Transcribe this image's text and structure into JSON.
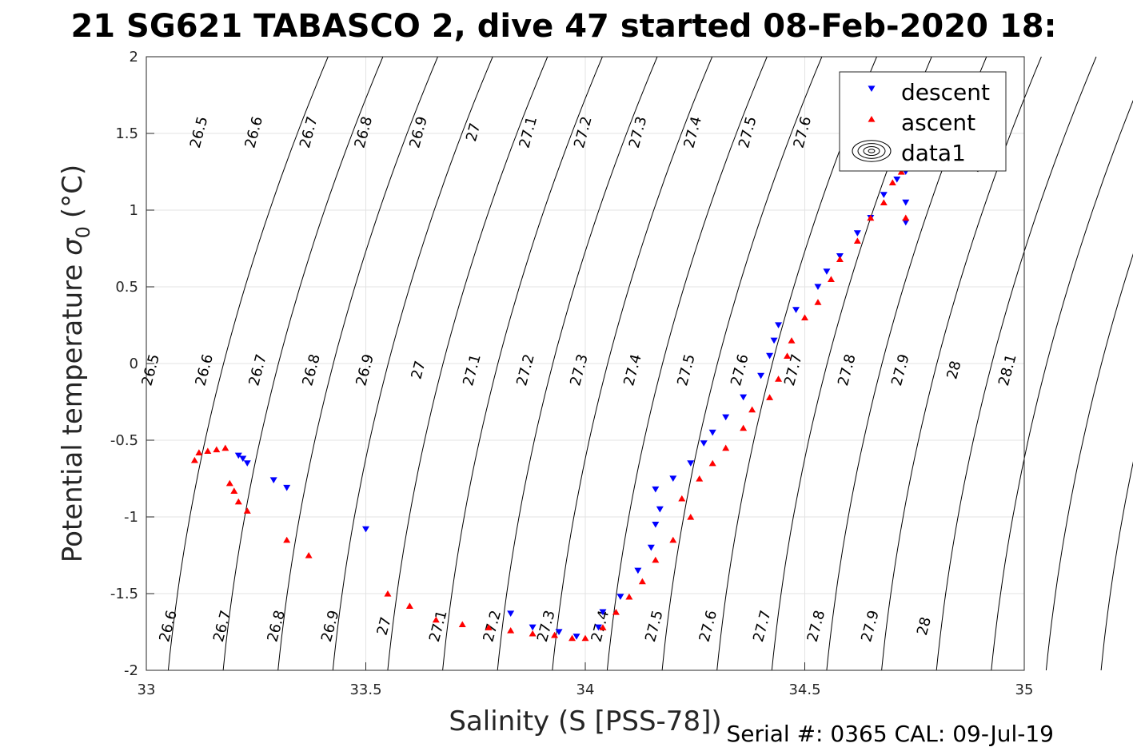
{
  "title": "21 SG621 TABASCO 2, dive 47 started 08-Feb-2020 18:",
  "footer": "Serial #: 0365  CAL: 09-Jul-19",
  "chart_data": {
    "type": "scatter",
    "xlabel": "Salinity (S [PSS-78])",
    "ylabel": "Potential temperature",
    "ylabel_symbol": "σ",
    "ylabel_subscript": "0",
    "ylabel_unit": "(°C)",
    "xlim": [
      33,
      35
    ],
    "ylim": [
      -2,
      2
    ],
    "x_ticks": [
      "33",
      "33.5",
      "34",
      "34.5",
      "35"
    ],
    "y_ticks": [
      "-2",
      "-1.5",
      "-1",
      "-0.5",
      "0",
      "0.5",
      "1",
      "1.5",
      "2"
    ],
    "grid": true,
    "legend_position": "top-right",
    "legend": [
      "descent",
      "ascent",
      "data1"
    ],
    "colors": {
      "descent": "#0000ff",
      "ascent": "#ff0000",
      "contour": "#000000"
    },
    "series": [
      {
        "name": "descent",
        "marker": "triangle-down",
        "points": [
          [
            33.21,
            -0.6
          ],
          [
            33.22,
            -0.62
          ],
          [
            33.23,
            -0.65
          ],
          [
            33.29,
            -0.76
          ],
          [
            33.32,
            -0.81
          ],
          [
            33.5,
            -1.08
          ],
          [
            33.83,
            -1.63
          ],
          [
            33.88,
            -1.72
          ],
          [
            33.94,
            -1.75
          ],
          [
            33.98,
            -1.78
          ],
          [
            34.03,
            -1.72
          ],
          [
            34.04,
            -1.62
          ],
          [
            34.08,
            -1.52
          ],
          [
            34.12,
            -1.35
          ],
          [
            34.15,
            -1.2
          ],
          [
            34.16,
            -1.05
          ],
          [
            34.17,
            -0.95
          ],
          [
            34.16,
            -0.82
          ],
          [
            34.2,
            -0.75
          ],
          [
            34.24,
            -0.65
          ],
          [
            34.27,
            -0.52
          ],
          [
            34.29,
            -0.45
          ],
          [
            34.32,
            -0.35
          ],
          [
            34.36,
            -0.22
          ],
          [
            34.4,
            -0.08
          ],
          [
            34.42,
            0.05
          ],
          [
            34.43,
            0.15
          ],
          [
            34.44,
            0.25
          ],
          [
            34.48,
            0.35
          ],
          [
            34.53,
            0.5
          ],
          [
            34.55,
            0.6
          ],
          [
            34.58,
            0.7
          ],
          [
            34.62,
            0.85
          ],
          [
            34.65,
            0.95
          ],
          [
            34.68,
            1.1
          ],
          [
            34.71,
            1.2
          ],
          [
            34.73,
            1.05
          ],
          [
            34.73,
            0.92
          ],
          [
            34.73,
            1.25
          ]
        ]
      },
      {
        "name": "ascent",
        "marker": "triangle-up",
        "points": [
          [
            33.11,
            -0.63
          ],
          [
            33.12,
            -0.58
          ],
          [
            33.14,
            -0.57
          ],
          [
            33.16,
            -0.56
          ],
          [
            33.18,
            -0.55
          ],
          [
            33.19,
            -0.78
          ],
          [
            33.2,
            -0.83
          ],
          [
            33.21,
            -0.9
          ],
          [
            33.23,
            -0.96
          ],
          [
            33.32,
            -1.15
          ],
          [
            33.37,
            -1.25
          ],
          [
            33.55,
            -1.5
          ],
          [
            33.6,
            -1.58
          ],
          [
            33.66,
            -1.67
          ],
          [
            33.72,
            -1.7
          ],
          [
            33.78,
            -1.72
          ],
          [
            33.83,
            -1.74
          ],
          [
            33.88,
            -1.76
          ],
          [
            33.93,
            -1.77
          ],
          [
            33.97,
            -1.79
          ],
          [
            34.0,
            -1.79
          ],
          [
            34.04,
            -1.72
          ],
          [
            34.07,
            -1.62
          ],
          [
            34.1,
            -1.52
          ],
          [
            34.13,
            -1.42
          ],
          [
            34.16,
            -1.28
          ],
          [
            34.2,
            -1.15
          ],
          [
            34.24,
            -1.0
          ],
          [
            34.22,
            -0.88
          ],
          [
            34.26,
            -0.75
          ],
          [
            34.29,
            -0.65
          ],
          [
            34.32,
            -0.55
          ],
          [
            34.36,
            -0.42
          ],
          [
            34.38,
            -0.3
          ],
          [
            34.42,
            -0.22
          ],
          [
            34.44,
            -0.1
          ],
          [
            34.46,
            0.05
          ],
          [
            34.47,
            0.15
          ],
          [
            34.5,
            0.3
          ],
          [
            34.53,
            0.4
          ],
          [
            34.56,
            0.55
          ],
          [
            34.58,
            0.68
          ],
          [
            34.62,
            0.8
          ],
          [
            34.65,
            0.95
          ],
          [
            34.68,
            1.05
          ],
          [
            34.7,
            1.18
          ],
          [
            34.72,
            1.25
          ],
          [
            34.73,
            0.95
          ]
        ]
      }
    ],
    "isopycnal_labels": {
      "top": [
        "26.5",
        "26.6",
        "26.7",
        "26.8",
        "26.9",
        "27",
        "27.1",
        "27.2",
        "27.3",
        "27.4",
        "27.5",
        "27.6",
        "28"
      ],
      "middle": [
        "26.5",
        "26.6",
        "26.7",
        "26.8",
        "26.9",
        "27",
        "27.1",
        "27.2",
        "27.3",
        "27.4",
        "27.5",
        "27.6",
        "27.7",
        "27.8",
        "27.9",
        "28",
        "28.1"
      ],
      "bottom": [
        "26.6",
        "26.7",
        "26.8",
        "26.9",
        "27",
        "27.1",
        "27.2",
        "27.3",
        "27.4",
        "27.5",
        "27.6",
        "27.7",
        "27.8",
        "27.9",
        "28"
      ]
    }
  }
}
